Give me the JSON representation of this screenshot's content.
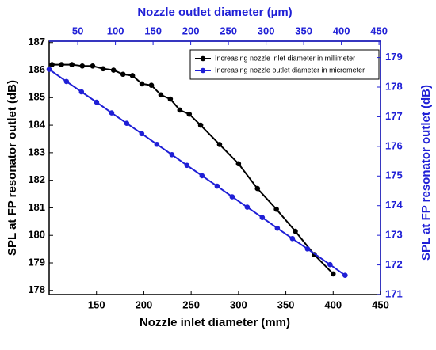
{
  "chart_data": {
    "type": "line",
    "xlabel": "Nozzle inlet diameter (mm)",
    "ylabel": "SPL at FP resonator outlet (dB)",
    "x2label": "Nozzle outlet diameter (µm)",
    "y2label": "SPL at FP resonator outlet (dB)",
    "xlim": [
      100,
      450
    ],
    "xticks": [
      150,
      200,
      250,
      300,
      350,
      400,
      450
    ],
    "x2lim": [
      12,
      452
    ],
    "x2ticks": [
      50,
      100,
      150,
      200,
      250,
      300,
      350,
      400,
      450
    ],
    "ylim": [
      177.85,
      187.05
    ],
    "yticks": [
      178,
      179,
      180,
      181,
      182,
      183,
      184,
      185,
      186,
      187
    ],
    "y2lim": [
      171,
      179.55
    ],
    "y2ticks": [
      171,
      172,
      173,
      174,
      175,
      176,
      177,
      178,
      179
    ],
    "legend": "upper right",
    "series": [
      {
        "name": "Increasing nozzle inlet diameter in millimeter",
        "color": "#000000",
        "axis": "y",
        "xaxis": "x",
        "x": [
          103,
          113,
          124,
          135,
          146,
          157,
          168,
          178,
          188,
          198,
          208,
          218,
          228,
          238,
          248,
          260,
          280,
          300,
          320,
          340,
          360,
          380,
          400
        ],
        "values": [
          186.2,
          186.2,
          186.2,
          186.15,
          186.15,
          186.05,
          186.0,
          185.85,
          185.8,
          185.5,
          185.45,
          185.1,
          184.95,
          184.55,
          184.4,
          184.0,
          183.3,
          182.6,
          181.7,
          180.95,
          180.15,
          179.3,
          178.6
        ]
      },
      {
        "name": "Increasing nozzle outlet diameter in micrometer",
        "color": "#1f1fd6",
        "axis": "y2",
        "xaxis": "x2",
        "x": [
          12,
          35,
          55,
          75,
          95,
          115,
          135,
          155,
          175,
          195,
          215,
          235,
          255,
          275,
          295,
          315,
          335,
          355,
          385,
          405
        ],
        "values": [
          178.6,
          178.19,
          177.84,
          177.49,
          177.13,
          176.78,
          176.43,
          176.07,
          175.72,
          175.36,
          175.01,
          174.66,
          174.3,
          173.95,
          173.6,
          173.24,
          172.89,
          172.54,
          172.01,
          171.65
        ]
      }
    ]
  }
}
